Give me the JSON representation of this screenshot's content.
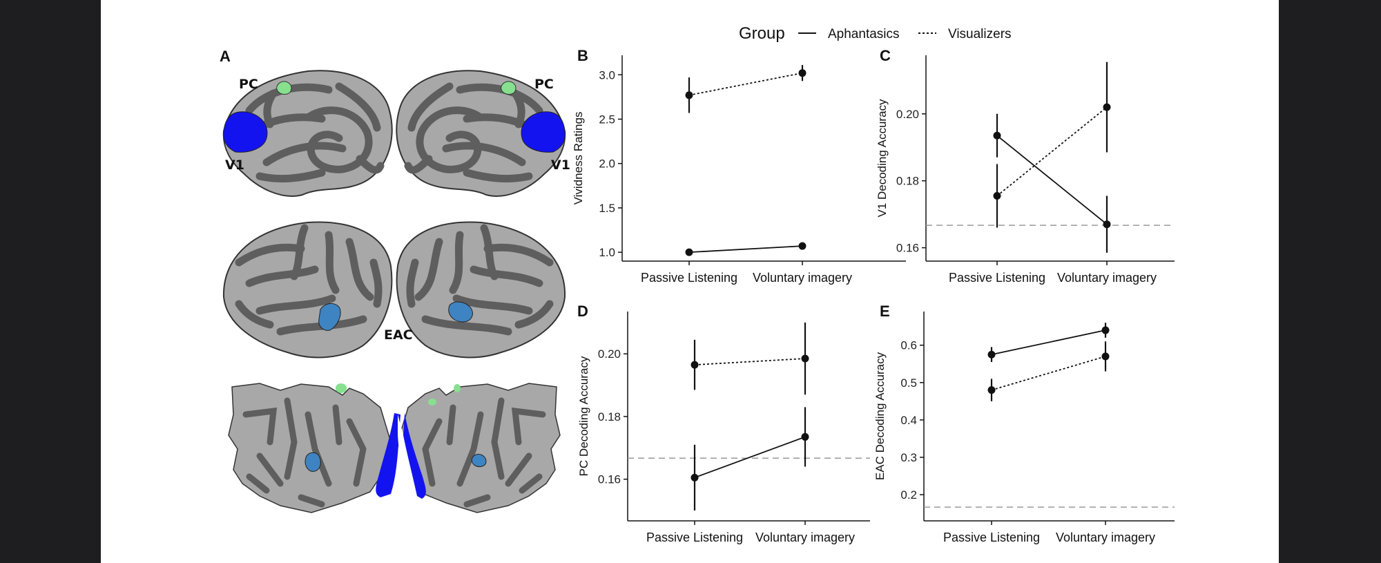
{
  "legend": {
    "title": "Group",
    "entries": [
      {
        "name": "Aphantasics",
        "style": "solid"
      },
      {
        "name": "Visualizers",
        "style": "dotted"
      }
    ]
  },
  "brain_panel": {
    "letter": "A",
    "labels": {
      "pc_left": "PC",
      "pc_right": "PC",
      "v1_left": "V1",
      "v1_right": "V1",
      "eac": "EAC"
    },
    "colors": {
      "pc": "#86e08e",
      "v1": "#1313f0",
      "eac": "#3f84c2",
      "gyri": "#a8a8a8",
      "sulci": "#5e5e5e"
    }
  },
  "chart_data": [
    {
      "panel": "B",
      "type": "line",
      "ylabel": "Vividness Ratings",
      "categories": [
        "Passive Listening",
        "Voluntary imagery"
      ],
      "ylim": [
        0.9,
        3.22
      ],
      "yticks": [
        1.0,
        1.5,
        2.0,
        2.5,
        3.0
      ],
      "ytick_labels": [
        "1.0",
        "1.5",
        "2.0",
        "2.5",
        "3.0"
      ],
      "chance": null,
      "series": [
        {
          "name": "Aphantasics",
          "style": "solid",
          "values": [
            1.0,
            1.07
          ],
          "err": [
            0.0,
            0.0
          ]
        },
        {
          "name": "Visualizers",
          "style": "dotted",
          "values": [
            2.77,
            3.02
          ],
          "err": [
            0.2,
            0.09
          ]
        }
      ]
    },
    {
      "panel": "C",
      "type": "line",
      "ylabel": "V1 Decoding Accuracy",
      "categories": [
        "Passive Listening",
        "Voluntary imagery"
      ],
      "ylim": [
        0.156,
        0.2175
      ],
      "yticks": [
        0.16,
        0.18,
        0.2
      ],
      "ytick_labels": [
        "0.16",
        "0.18",
        "0.20"
      ],
      "chance": 0.1667,
      "series": [
        {
          "name": "Aphantasics",
          "style": "solid",
          "values": [
            0.1935,
            0.167
          ],
          "err": [
            0.0065,
            0.0085
          ]
        },
        {
          "name": "Visualizers",
          "style": "dotted",
          "values": [
            0.1755,
            0.202
          ],
          "err": [
            0.0095,
            0.0135
          ]
        }
      ]
    },
    {
      "panel": "D",
      "type": "line",
      "ylabel": "PC Decoding Accuracy",
      "categories": [
        "Passive Listening",
        "Voluntary imagery"
      ],
      "ylim": [
        0.1467,
        0.2135
      ],
      "yticks": [
        0.16,
        0.18,
        0.2
      ],
      "ytick_labels": [
        "0.16",
        "0.18",
        "0.20"
      ],
      "chance": 0.1667,
      "series": [
        {
          "name": "Aphantasics",
          "style": "solid",
          "values": [
            0.1605,
            0.1735
          ],
          "err": [
            0.0105,
            0.0095
          ]
        },
        {
          "name": "Visualizers",
          "style": "dotted",
          "values": [
            0.1965,
            0.1985
          ],
          "err": [
            0.008,
            0.0115
          ]
        }
      ]
    },
    {
      "panel": "E",
      "type": "line",
      "ylabel": "EAC Decoding Accuracy",
      "categories": [
        "Passive Listening",
        "Voluntary imagery"
      ],
      "ylim": [
        0.13,
        0.69
      ],
      "yticks": [
        0.2,
        0.3,
        0.4,
        0.5,
        0.6
      ],
      "ytick_labels": [
        "0.2",
        "0.3",
        "0.4",
        "0.5",
        "0.6"
      ],
      "chance": 0.1667,
      "series": [
        {
          "name": "Aphantasics",
          "style": "solid",
          "values": [
            0.575,
            0.64
          ],
          "err": [
            0.02,
            0.02
          ]
        },
        {
          "name": "Visualizers",
          "style": "dotted",
          "values": [
            0.48,
            0.57
          ],
          "err": [
            0.03,
            0.04
          ]
        }
      ]
    }
  ]
}
